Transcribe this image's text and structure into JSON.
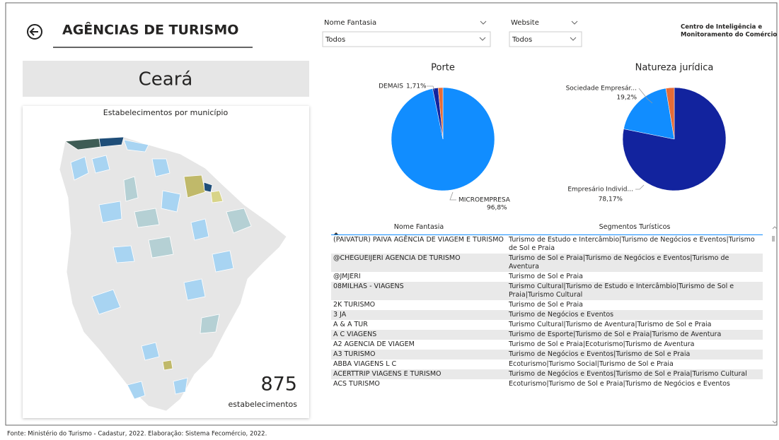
{
  "header": {
    "title": "AGÊNCIAS DE TURISMO"
  },
  "filters": [
    {
      "label": "Nome Fantasia",
      "value": "Todos"
    },
    {
      "label": "Website",
      "value": "Todos"
    }
  ],
  "logo": [
    "Centro de Inteligência e",
    "Monitoramento do Comércio"
  ],
  "state": "Ceará",
  "map": {
    "title": "Estabelecimentos por município"
  },
  "kpi": {
    "value": 875,
    "label": "estabelecimentos"
  },
  "chart_data": [
    {
      "type": "pie",
      "title": "Porte",
      "categories": [
        "MICROEMPRESA",
        "DEMAIS",
        null
      ],
      "values": [
        96.8,
        1.71,
        1.49
      ],
      "value_labels": [
        "96,8%",
        "1,71%",
        null
      ],
      "colors": [
        "#118dff",
        "#12239e",
        "#e66c37"
      ]
    },
    {
      "type": "pie",
      "title": "Natureza jurídica",
      "categories": [
        "Empresário Individ...",
        "Sociedade Empresár...",
        null
      ],
      "values": [
        78.17,
        19.2,
        2.63
      ],
      "value_labels": [
        "78,17%",
        "19,2%",
        null
      ],
      "colors": [
        "#12239e",
        "#118dff",
        "#e66c37"
      ]
    }
  ],
  "table": {
    "columns": [
      "Nome Fantasia",
      "Segmentos Turísticos"
    ],
    "rows": [
      [
        "(PAIVATUR) PAIVA AGÊNCIA DE VIAGEM E TURISMO",
        "Turismo de Estudo e Intercâmbio|Turismo de Negócios e Eventos|Turismo de Sol e Praia"
      ],
      [
        "@CHEGUEIJERI AGENCIA DE TURISMO",
        "Turismo de Sol e Praia|Turismo de Negócios e Eventos|Turismo de Aventura"
      ],
      [
        "@JMJERI",
        "Turismo de Sol e Praia"
      ],
      [
        "08MILHAS - VIAGENS",
        "Turismo Cultural|Turismo de Estudo e Intercâmbio|Turismo de Sol e Praia|Turismo Cultural"
      ],
      [
        "2K TURISMO",
        "Turismo de Sol e Praia"
      ],
      [
        "3 JA",
        "Turismo de Negócios e Eventos"
      ],
      [
        "A & A TUR",
        "Turismo Cultural|Turismo de Aventura|Turismo de Sol e Praia"
      ],
      [
        "A C VIAGENS",
        "Turismo de Esporte|Turismo de Sol e Praia|Turismo de Aventura"
      ],
      [
        "A2 AGENCIA DE VIAGEM",
        "Turismo de Sol e Praia|Ecoturismo|Turismo de Aventura"
      ],
      [
        "A3 TURISMO",
        "Turismo de Negócios e Eventos|Turismo de Sol e Praia"
      ],
      [
        "ABBA VIAGENS L C",
        "Ecoturismo|Turismo Social|Turismo de Sol e Praia"
      ],
      [
        "ACERTTRIP VIAGENS E TURISMO",
        "Turismo de Negócios e Eventos|Turismo de Sol e Praia|Turismo Cultural"
      ],
      [
        "ACS TURISMO",
        "Ecoturismo|Turismo de Sol e Praia|Turismo de Negócios e Eventos"
      ]
    ]
  },
  "footer": "Fonte: Ministério do Turismo - Cadastur, 2022. Elaboração: Sistema Fecomércio, 2022."
}
